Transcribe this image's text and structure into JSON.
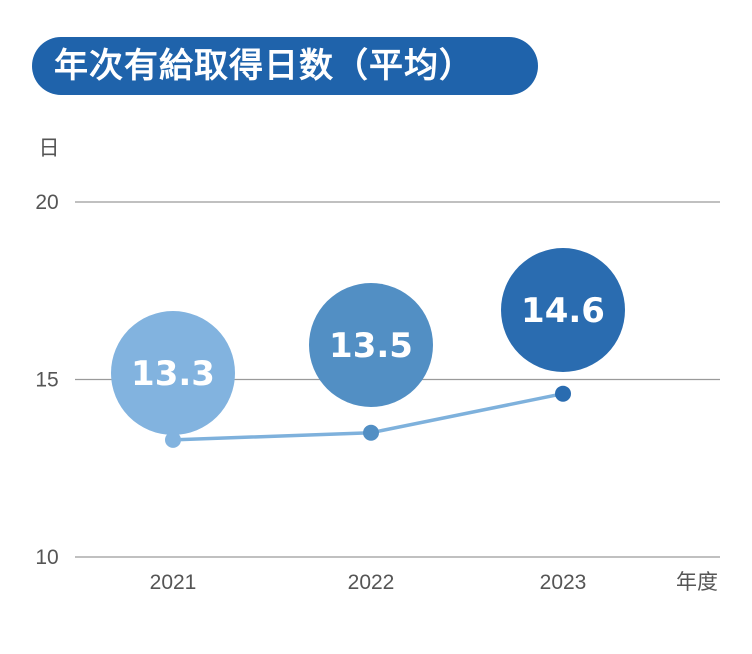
{
  "chart_data": {
    "type": "line",
    "title": "年次有給取得日数（平均）",
    "ylabel": "日",
    "xlabel": "年度",
    "categories": [
      "2021",
      "2022",
      "2023"
    ],
    "values": [
      13.3,
      13.5,
      14.6
    ],
    "value_labels": [
      "13.3",
      "13.5",
      "14.6"
    ],
    "y_ticks": [
      "10",
      "15",
      "20"
    ],
    "ylim": [
      10,
      20
    ],
    "grid": true,
    "colors": {
      "title_bg": "#1f63ab",
      "line": "#7eb1dc",
      "bubbles": [
        "#82b3df",
        "#528fc4",
        "#2a6cb0"
      ],
      "points": [
        "#82b3df",
        "#528fc4",
        "#2a6cb0"
      ],
      "grid": "#9a9a9a"
    }
  }
}
